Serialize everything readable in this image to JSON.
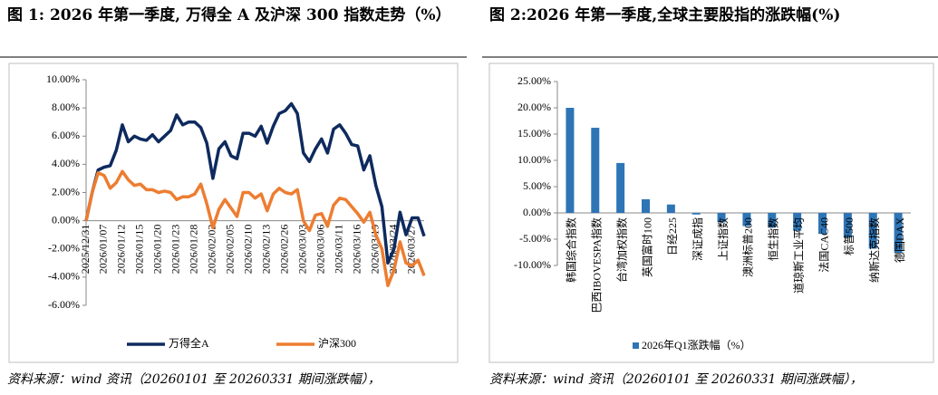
{
  "chart_data": [
    {
      "type": "line",
      "title": "图 1: 2026 年第一季度, 万得全 A 及沪深 300 指数走势（%）",
      "source": "资料来源：wind 资讯（20260101 至 20260331 期间涨跌幅），",
      "categories": [
        "2025/12/31",
        null,
        null,
        "2026/01/07",
        null,
        null,
        "2026/01/12",
        null,
        null,
        "2026/01/15",
        null,
        null,
        "2026/01/20",
        null,
        null,
        "2026/01/23",
        null,
        null,
        "2026/01/28",
        null,
        null,
        "2026/02/02",
        null,
        null,
        "2026/02/05",
        null,
        null,
        "2026/02/10",
        null,
        null,
        "2026/02/13",
        null,
        null,
        "2026/02/26",
        null,
        null,
        "2026/03/03",
        null,
        null,
        "2026/03/06",
        null,
        null,
        "2026/03/11",
        null,
        null,
        "2026/03/16",
        null,
        null,
        "2026/03/19",
        null,
        null,
        "2026/03/24",
        null,
        null,
        "2026/03/27",
        null,
        null
      ],
      "series": [
        {
          "name": "万得全A",
          "color": "#0e2a5e",
          "values": [
            0,
            2.0,
            3.6,
            3.8,
            3.9,
            5.0,
            6.8,
            5.6,
            6.0,
            5.8,
            5.7,
            6.1,
            5.6,
            6.0,
            6.4,
            7.5,
            6.8,
            7.0,
            7.0,
            6.6,
            5.5,
            3.0,
            5.1,
            5.6,
            4.6,
            4.4,
            6.2,
            6.2,
            6.0,
            6.7,
            5.5,
            6.7,
            7.6,
            7.8,
            8.3,
            7.6,
            4.8,
            4.2,
            5.1,
            5.8,
            4.8,
            6.5,
            6.8,
            6.2,
            5.4,
            5.3,
            3.6,
            4.6,
            2.5,
            1.0,
            -3.0,
            -2.0,
            0.6,
            -1.0,
            0.2,
            0.2,
            -1.1
          ]
        },
        {
          "name": "沪深300",
          "color": "#ed7d31",
          "values": [
            0,
            2.0,
            3.4,
            3.2,
            2.3,
            2.7,
            3.5,
            2.9,
            2.5,
            2.6,
            2.2,
            2.2,
            2.0,
            2.1,
            2.0,
            1.5,
            1.7,
            1.7,
            1.9,
            2.6,
            1.2,
            -0.5,
            0.8,
            1.5,
            0.9,
            0.3,
            2.0,
            2.0,
            1.6,
            1.9,
            0.7,
            1.9,
            2.3,
            2.0,
            1.9,
            2.2,
            0.0,
            -0.7,
            0.4,
            0.5,
            -0.4,
            1.1,
            1.6,
            1.5,
            1.0,
            0.5,
            -0.1,
            0.6,
            -1.0,
            -2.0,
            -4.6,
            -3.5,
            -1.5,
            -3.0,
            -3.2,
            -2.8,
            -3.9
          ]
        }
      ],
      "ylim": [
        -6,
        10
      ],
      "yticks": [
        {
          "value": 10,
          "label": "10.00%"
        },
        {
          "value": 8,
          "label": "8.00%"
        },
        {
          "value": 6,
          "label": "6.00%"
        },
        {
          "value": 4,
          "label": "4.00%"
        },
        {
          "value": 2,
          "label": "2.00%"
        },
        {
          "value": 0,
          "label": "0.00%"
        },
        {
          "value": -2,
          "label": "-2.00%"
        },
        {
          "value": -4,
          "label": "-4.00%"
        },
        {
          "value": -6,
          "label": "-6.00%"
        }
      ],
      "legend": "bottom"
    },
    {
      "type": "bar",
      "title": "图 2:2026 年第一季度,全球主要股指的涨跌幅(%)",
      "source": "资料来源：wind 资讯（20260101 至 20260331 期间涨跌幅），",
      "categories": [
        "韩国综合指数",
        "巴西IBOVESPA指数",
        "台湾加权指数",
        "英国富时100",
        "日经225",
        "深证成指",
        "上证指数",
        "澳洲标普200",
        "恒生指数",
        "道琼斯工业平均",
        "法国CAC40",
        "标普500",
        "纳斯达克指数",
        "德国DAX"
      ],
      "series": [
        {
          "name": "2026年Q1涨跌幅（%）",
          "color": "#2e75b6",
          "values": [
            20.0,
            16.2,
            9.5,
            2.6,
            1.6,
            -0.3,
            -1.8,
            -2.5,
            -2.8,
            -3.4,
            -4.0,
            -4.7,
            -6.8,
            -7.6
          ]
        }
      ],
      "ylim": [
        -10,
        25
      ],
      "yticks": [
        {
          "value": 25,
          "label": "25.00%"
        },
        {
          "value": 20,
          "label": "20.00%"
        },
        {
          "value": 15,
          "label": "15.00%"
        },
        {
          "value": 10,
          "label": "10.00%"
        },
        {
          "value": 5,
          "label": "5.00%"
        },
        {
          "value": 0,
          "label": "0.00%"
        },
        {
          "value": -5,
          "label": "-5.00%"
        },
        {
          "value": -10,
          "label": "-10.00%"
        }
      ],
      "legend": "bottom"
    }
  ]
}
